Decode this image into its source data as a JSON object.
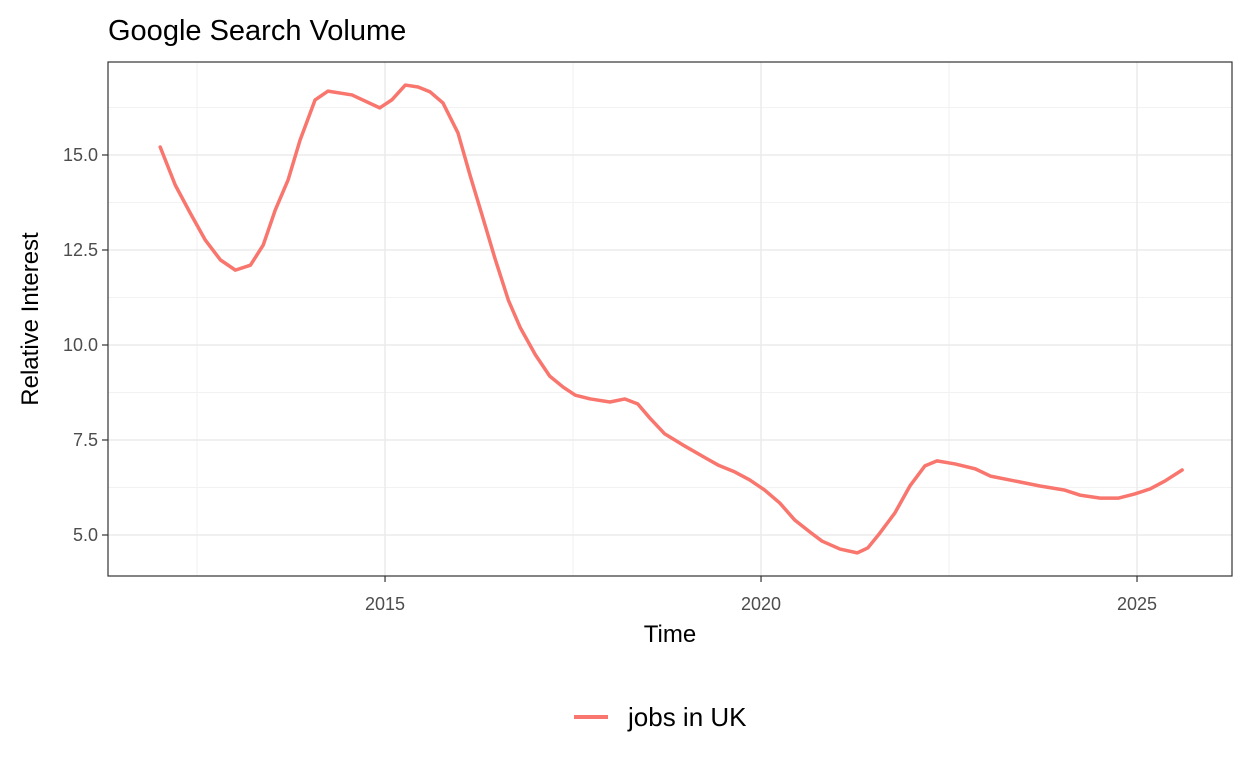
{
  "chart_data": {
    "type": "line",
    "title": "Google Search Volume",
    "x_label": "Time",
    "y_label": "Relative Interest",
    "xlim": [
      2011.316,
      2026.263
    ],
    "ylim": [
      3.921,
      17.447
    ],
    "xticks": [
      2015,
      2020,
      2025
    ],
    "yticks": [
      {
        "value": 5,
        "label": "5.0"
      },
      7.5,
      {
        "value": 10,
        "label": "10.0"
      },
      12.5,
      {
        "value": 15,
        "label": "15.0"
      }
    ],
    "x_minor_ticks": [
      2012.5,
      2017.5,
      2022.5
    ],
    "y_minor_ticks": [
      6.25,
      8.75,
      11.25,
      13.75,
      16.25
    ],
    "grid": true,
    "legend_position": "bottom",
    "x": [
      2012.01,
      2012.21,
      2012.41,
      2012.61,
      2012.81,
      2013.01,
      2013.21,
      2013.38,
      2013.54,
      2013.71,
      2013.87,
      2014.07,
      2014.24,
      2014.56,
      2014.93,
      2015.09,
      2015.27,
      2015.44,
      2015.6,
      2015.77,
      2015.97,
      2016.13,
      2016.29,
      2016.46,
      2016.64,
      2016.8,
      2017.0,
      2017.19,
      2017.37,
      2017.53,
      2017.73,
      2017.99,
      2018.19,
      2018.36,
      2018.52,
      2018.72,
      2018.96,
      2019.26,
      2019.43,
      2019.65,
      2019.85,
      2020.05,
      2020.25,
      2020.45,
      2020.65,
      2020.81,
      2021.05,
      2021.28,
      2021.42,
      2021.58,
      2021.78,
      2021.98,
      2022.18,
      2022.34,
      2022.58,
      2022.85,
      2023.05,
      2023.38,
      2023.71,
      2024.04,
      2024.24,
      2024.51,
      2024.75,
      2024.97,
      2025.17,
      2025.37,
      2025.6
    ],
    "series": [
      {
        "name": "jobs in UK",
        "color": "#F8766D",
        "values": [
          15.21,
          14.21,
          13.47,
          12.76,
          12.24,
          11.97,
          12.1,
          12.63,
          13.55,
          14.34,
          15.39,
          16.45,
          16.68,
          16.58,
          16.24,
          16.45,
          16.84,
          16.79,
          16.66,
          16.37,
          15.58,
          14.47,
          13.42,
          12.29,
          11.18,
          10.45,
          9.74,
          9.18,
          8.89,
          8.68,
          8.58,
          8.5,
          8.58,
          8.45,
          8.08,
          7.66,
          7.37,
          7.03,
          6.84,
          6.66,
          6.45,
          6.18,
          5.84,
          5.39,
          5.08,
          4.84,
          4.63,
          4.53,
          4.66,
          5.05,
          5.58,
          6.29,
          6.82,
          6.95,
          6.87,
          6.74,
          6.55,
          6.42,
          6.29,
          6.18,
          6.05,
          5.97,
          5.97,
          6.08,
          6.21,
          6.42,
          6.71
        ]
      }
    ]
  }
}
